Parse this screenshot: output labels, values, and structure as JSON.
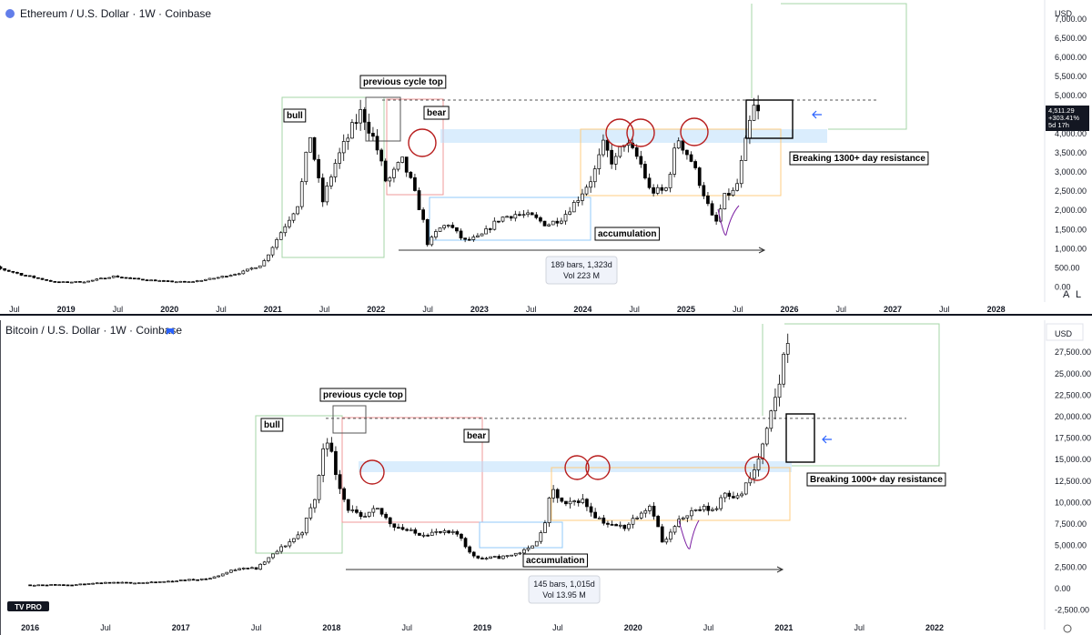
{
  "chart_data": [
    {
      "type": "candlestick",
      "title": "Ethereum / U.S. Dollar · 1W · Coinbase",
      "currency": "USD",
      "ylim": [
        -300,
        7400
      ],
      "y_ticks": [
        "7,000.00",
        "6,500.00",
        "6,000.00",
        "5,500.00",
        "5,000.00",
        "4,500.00",
        "4,000.00",
        "3,500.00",
        "3,000.00",
        "2,500.00",
        "2,000.00",
        "1,500.00",
        "1,000.00",
        "500.00",
        "0.00"
      ],
      "x_ticks": [
        "Jul",
        "2019",
        "Jul",
        "2020",
        "Jul",
        "2021",
        "Jul",
        "2022",
        "Jul",
        "2023",
        "Jul",
        "2024",
        "Jul",
        "2025",
        "Jul",
        "2026",
        "Jul",
        "2027",
        "Jul",
        "2028"
      ],
      "price_badge": {
        "price": "4,511.29",
        "change": "+303.41%",
        "countdown": "5d 17h"
      },
      "annotations": {
        "previous_cycle_top": "previous cycle top",
        "bull": "bull",
        "bear": "bear",
        "accumulation": "accumulation",
        "breaking": "Breaking 1300+ day resistance"
      },
      "measure": {
        "bars": "189 bars, 1,323d",
        "vol": "Vol 223 M"
      },
      "resistance_level": 4880,
      "series": [
        {
          "t": 2018.0,
          "v": 750
        },
        {
          "t": 2018.3,
          "v": 520
        },
        {
          "t": 2018.6,
          "v": 300
        },
        {
          "t": 2018.9,
          "v": 120
        },
        {
          "t": 2019.2,
          "v": 140
        },
        {
          "t": 2019.45,
          "v": 280
        },
        {
          "t": 2019.7,
          "v": 200
        },
        {
          "t": 2020.0,
          "v": 140
        },
        {
          "t": 2020.2,
          "v": 130
        },
        {
          "t": 2020.45,
          "v": 235
        },
        {
          "t": 2020.7,
          "v": 380
        },
        {
          "t": 2020.9,
          "v": 600
        },
        {
          "t": 2021.05,
          "v": 1300
        },
        {
          "t": 2021.25,
          "v": 2200
        },
        {
          "t": 2021.36,
          "v": 4000
        },
        {
          "t": 2021.48,
          "v": 2200
        },
        {
          "t": 2021.6,
          "v": 3200
        },
        {
          "t": 2021.78,
          "v": 4200
        },
        {
          "t": 2021.86,
          "v": 4600
        },
        {
          "t": 2022.0,
          "v": 3700
        },
        {
          "t": 2022.1,
          "v": 2700
        },
        {
          "t": 2022.25,
          "v": 3300
        },
        {
          "t": 2022.33,
          "v": 2800
        },
        {
          "t": 2022.45,
          "v": 1800
        },
        {
          "t": 2022.5,
          "v": 1100
        },
        {
          "t": 2022.6,
          "v": 1500
        },
        {
          "t": 2022.7,
          "v": 1650
        },
        {
          "t": 2022.85,
          "v": 1200
        },
        {
          "t": 2023.0,
          "v": 1300
        },
        {
          "t": 2023.2,
          "v": 1800
        },
        {
          "t": 2023.35,
          "v": 1900
        },
        {
          "t": 2023.5,
          "v": 1850
        },
        {
          "t": 2023.65,
          "v": 1620
        },
        {
          "t": 2023.8,
          "v": 1800
        },
        {
          "t": 2023.95,
          "v": 2300
        },
        {
          "t": 2024.1,
          "v": 2900
        },
        {
          "t": 2024.2,
          "v": 3700
        },
        {
          "t": 2024.3,
          "v": 3200
        },
        {
          "t": 2024.4,
          "v": 3800
        },
        {
          "t": 2024.55,
          "v": 3300
        },
        {
          "t": 2024.65,
          "v": 2500
        },
        {
          "t": 2024.8,
          "v": 2500
        },
        {
          "t": 2024.92,
          "v": 3900
        },
        {
          "t": 2025.05,
          "v": 3300
        },
        {
          "t": 2025.15,
          "v": 2600
        },
        {
          "t": 2025.28,
          "v": 1600
        },
        {
          "t": 2025.38,
          "v": 2400
        },
        {
          "t": 2025.48,
          "v": 2500
        },
        {
          "t": 2025.58,
          "v": 3800
        },
        {
          "t": 2025.65,
          "v": 4700
        },
        {
          "t": 2025.7,
          "v": 4511
        }
      ]
    },
    {
      "type": "candlestick",
      "title": "Bitcoin / U.S. Dollar · 1W · Coinbase",
      "currency": "USD",
      "ylim": [
        -3500,
        30800
      ],
      "y_ticks": [
        "27,500.00",
        "25,000.00",
        "22,500.00",
        "20,000.00",
        "17,500.00",
        "15,000.00",
        "12,500.00",
        "10,000.00",
        "7,500.00",
        "5,000.00",
        "2,500.00",
        "0.00",
        "-2,500.00"
      ],
      "x_ticks": [
        "2016",
        "Jul",
        "2017",
        "Jul",
        "2018",
        "Jul",
        "2019",
        "Jul",
        "2020",
        "Jul",
        "2021",
        "Jul",
        "2022"
      ],
      "annotations": {
        "previous_cycle_top": "previous cycle top",
        "bull": "bull",
        "bear": "bear",
        "accumulation": "accumulation",
        "breaking": "Breaking 1000+ day resistance"
      },
      "measure": {
        "bars": "145 bars, 1,015d",
        "vol": "Vol 13.95 M"
      },
      "resistance_level": 19800,
      "logo": "TV PRO",
      "series": [
        {
          "t": 2016.0,
          "v": 430
        },
        {
          "t": 2016.3,
          "v": 450
        },
        {
          "t": 2016.5,
          "v": 660
        },
        {
          "t": 2016.8,
          "v": 700
        },
        {
          "t": 2017.0,
          "v": 950
        },
        {
          "t": 2017.2,
          "v": 1200
        },
        {
          "t": 2017.4,
          "v": 2500
        },
        {
          "t": 2017.5,
          "v": 2300
        },
        {
          "t": 2017.65,
          "v": 4500
        },
        {
          "t": 2017.8,
          "v": 6500
        },
        {
          "t": 2017.9,
          "v": 11000
        },
        {
          "t": 2017.96,
          "v": 18500
        },
        {
          "t": 2018.02,
          "v": 14000
        },
        {
          "t": 2018.1,
          "v": 9500
        },
        {
          "t": 2018.2,
          "v": 8000
        },
        {
          "t": 2018.3,
          "v": 9200
        },
        {
          "t": 2018.4,
          "v": 7500
        },
        {
          "t": 2018.55,
          "v": 6400
        },
        {
          "t": 2018.7,
          "v": 6500
        },
        {
          "t": 2018.85,
          "v": 6300
        },
        {
          "t": 2018.92,
          "v": 4000
        },
        {
          "t": 2019.0,
          "v": 3500
        },
        {
          "t": 2019.15,
          "v": 3700
        },
        {
          "t": 2019.3,
          "v": 4500
        },
        {
          "t": 2019.4,
          "v": 6500
        },
        {
          "t": 2019.46,
          "v": 11500
        },
        {
          "t": 2019.55,
          "v": 9500
        },
        {
          "t": 2019.65,
          "v": 10500
        },
        {
          "t": 2019.75,
          "v": 8500
        },
        {
          "t": 2019.85,
          "v": 7300
        },
        {
          "t": 2019.95,
          "v": 7200
        },
        {
          "t": 2020.05,
          "v": 9000
        },
        {
          "t": 2020.12,
          "v": 9800
        },
        {
          "t": 2020.2,
          "v": 5000
        },
        {
          "t": 2020.25,
          "v": 6500
        },
        {
          "t": 2020.35,
          "v": 8800
        },
        {
          "t": 2020.45,
          "v": 9300
        },
        {
          "t": 2020.55,
          "v": 9200
        },
        {
          "t": 2020.6,
          "v": 11500
        },
        {
          "t": 2020.7,
          "v": 10500
        },
        {
          "t": 2020.8,
          "v": 13500
        },
        {
          "t": 2020.88,
          "v": 17500
        },
        {
          "t": 2020.97,
          "v": 24000
        },
        {
          "t": 2021.04,
          "v": 31000
        }
      ]
    }
  ],
  "ui": {
    "auto_btn": "A",
    "log_btn": "L"
  }
}
